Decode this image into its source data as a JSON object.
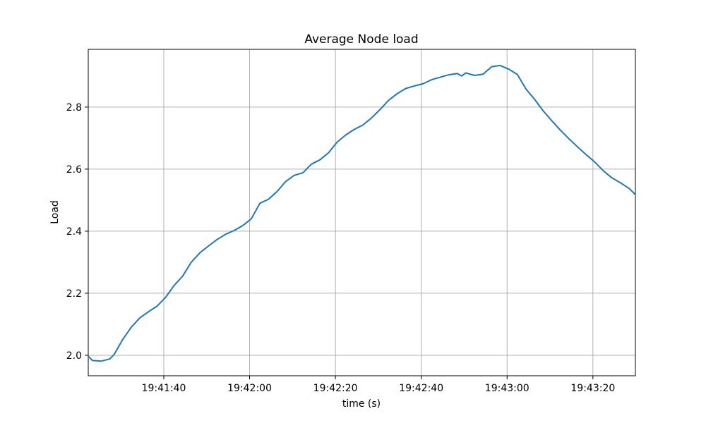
{
  "chart_data": {
    "type": "line",
    "title": "Average Node load",
    "xlabel": "time (s)",
    "ylabel": "Load",
    "grid": true,
    "legend": false,
    "ylim": [
      1.934,
      2.986
    ],
    "xlim_seconds": [
      0,
      127.5
    ],
    "x_axis": {
      "ticks": [
        {
          "t": 17.6,
          "label": "19:41:40"
        },
        {
          "t": 37.6,
          "label": "19:42:00"
        },
        {
          "t": 57.6,
          "label": "19:42:20"
        },
        {
          "t": 77.6,
          "label": "19:42:40"
        },
        {
          "t": 97.6,
          "label": "19:43:00"
        },
        {
          "t": 117.6,
          "label": "19:43:20"
        }
      ]
    },
    "y_axis": {
      "ticks": [
        {
          "v": 2.0,
          "label": "2.0"
        },
        {
          "v": 2.2,
          "label": "2.2"
        },
        {
          "v": 2.4,
          "label": "2.4"
        },
        {
          "v": 2.6,
          "label": "2.6"
        },
        {
          "v": 2.8,
          "label": "2.8"
        }
      ]
    },
    "colors": {
      "line": "#1f77b4",
      "grid": "#b0b0b0",
      "spine": "#000000",
      "background": "#ffffff"
    },
    "series": [
      {
        "name": "average-node-load",
        "color": "#1f77b4",
        "points": [
          [
            0,
            1.997
          ],
          [
            1,
            1.983
          ],
          [
            3,
            1.981
          ],
          [
            5,
            1.988
          ],
          [
            6,
            2.002
          ],
          [
            8,
            2.05
          ],
          [
            10,
            2.09
          ],
          [
            12,
            2.12
          ],
          [
            14,
            2.14
          ],
          [
            16,
            2.158
          ],
          [
            18,
            2.186
          ],
          [
            20,
            2.225
          ],
          [
            22,
            2.255
          ],
          [
            24,
            2.3
          ],
          [
            26,
            2.33
          ],
          [
            28,
            2.352
          ],
          [
            30,
            2.373
          ],
          [
            32,
            2.39
          ],
          [
            34,
            2.402
          ],
          [
            36,
            2.418
          ],
          [
            38,
            2.44
          ],
          [
            40,
            2.49
          ],
          [
            42,
            2.503
          ],
          [
            44,
            2.528
          ],
          [
            46,
            2.56
          ],
          [
            48,
            2.58
          ],
          [
            50,
            2.588
          ],
          [
            52,
            2.616
          ],
          [
            54,
            2.63
          ],
          [
            56,
            2.653
          ],
          [
            58,
            2.687
          ],
          [
            60,
            2.71
          ],
          [
            62,
            2.728
          ],
          [
            64,
            2.742
          ],
          [
            66,
            2.765
          ],
          [
            68,
            2.792
          ],
          [
            70,
            2.822
          ],
          [
            72,
            2.843
          ],
          [
            74,
            2.86
          ],
          [
            76,
            2.868
          ],
          [
            78,
            2.875
          ],
          [
            80,
            2.888
          ],
          [
            82,
            2.896
          ],
          [
            84,
            2.904
          ],
          [
            86,
            2.908
          ],
          [
            87,
            2.9
          ],
          [
            88,
            2.91
          ],
          [
            90,
            2.902
          ],
          [
            92,
            2.906
          ],
          [
            94,
            2.93
          ],
          [
            96,
            2.934
          ],
          [
            98,
            2.922
          ],
          [
            100,
            2.905
          ],
          [
            102,
            2.858
          ],
          [
            104,
            2.825
          ],
          [
            106,
            2.788
          ],
          [
            108,
            2.756
          ],
          [
            110,
            2.726
          ],
          [
            112,
            2.698
          ],
          [
            114,
            2.672
          ],
          [
            116,
            2.647
          ],
          [
            118,
            2.623
          ],
          [
            120,
            2.595
          ],
          [
            122,
            2.572
          ],
          [
            124,
            2.556
          ],
          [
            126,
            2.538
          ],
          [
            127.5,
            2.518
          ]
        ]
      }
    ]
  }
}
